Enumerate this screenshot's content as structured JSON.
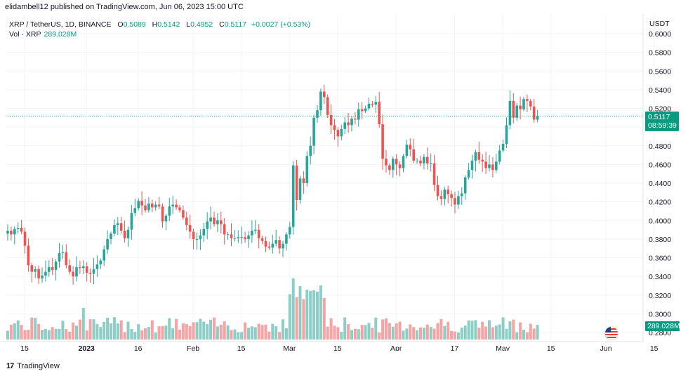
{
  "header": {
    "publish_line": "elidambell12 published on TradingView.com, Jun 06, 2023 15:00 UTC"
  },
  "legend": {
    "symbol": "XRP / TetherUS, 1D, BINANCE",
    "open_label": "O",
    "open": "0.5089",
    "high_label": "H",
    "high": "0.5142",
    "low_label": "L",
    "low": "0.4952",
    "close_label": "C",
    "close": "0.5117",
    "change": "+0.0027 (+0.53%)",
    "vol_label": "Vol · XRP",
    "vol_value": "289.028M"
  },
  "price_axis": {
    "currency": "USDT",
    "current_price": "0.5117",
    "countdown": "08:59:39",
    "current_volume": "289.028M",
    "colors": {
      "up": "#26a69a",
      "down": "#ef5350",
      "vol_up": "#8ccdc5",
      "vol_down": "#f5a3a3",
      "badge": "#089981"
    }
  },
  "footer": {
    "brand": "TradingView",
    "logo_glyph": "17"
  },
  "chart_data": {
    "type": "candlestick",
    "y_ticks": [
      "0.6000",
      "0.5800",
      "0.5600",
      "0.5400",
      "0.5200",
      "0.5000",
      "0.4800",
      "0.4600",
      "0.4400",
      "0.4200",
      "0.4000",
      "0.3800",
      "0.3600",
      "0.3400",
      "0.3200",
      "0.3000",
      "0.2800"
    ],
    "x_ticks": [
      "15",
      "2023",
      "16",
      "Feb",
      "15",
      "Mar",
      "15",
      "Apr",
      "17",
      "May",
      "15",
      "Jun",
      "15"
    ],
    "x_tick_days": [
      0,
      18,
      33,
      49,
      63,
      77,
      91,
      108,
      125,
      139,
      153,
      169,
      183
    ],
    "ylim": [
      0.278,
      0.605
    ],
    "last_price": 0.5117,
    "closes": [
      0.389,
      0.385,
      0.391,
      0.392,
      0.388,
      0.373,
      0.352,
      0.345,
      0.348,
      0.338,
      0.341,
      0.345,
      0.35,
      0.347,
      0.356,
      0.365,
      0.366,
      0.352,
      0.345,
      0.34,
      0.35,
      0.349,
      0.351,
      0.344,
      0.343,
      0.348,
      0.353,
      0.357,
      0.369,
      0.38,
      0.386,
      0.395,
      0.397,
      0.389,
      0.381,
      0.39,
      0.408,
      0.413,
      0.421,
      0.416,
      0.411,
      0.418,
      0.414,
      0.417,
      0.415,
      0.399,
      0.405,
      0.415,
      0.417,
      0.414,
      0.411,
      0.403,
      0.395,
      0.388,
      0.38,
      0.38,
      0.384,
      0.391,
      0.399,
      0.403,
      0.396,
      0.4,
      0.396,
      0.385,
      0.385,
      0.381,
      0.381,
      0.382,
      0.382,
      0.38,
      0.384,
      0.389,
      0.39,
      0.381,
      0.378,
      0.372,
      0.371,
      0.375,
      0.379,
      0.37,
      0.375,
      0.385,
      0.393,
      0.459,
      0.422,
      0.445,
      0.44,
      0.469,
      0.48,
      0.51,
      0.518,
      0.538,
      0.532,
      0.513,
      0.502,
      0.497,
      0.49,
      0.498,
      0.505,
      0.502,
      0.509,
      0.508,
      0.519,
      0.517,
      0.52,
      0.525,
      0.524,
      0.527,
      0.503,
      0.466,
      0.459,
      0.454,
      0.466,
      0.46,
      0.456,
      0.469,
      0.481,
      0.476,
      0.464,
      0.464,
      0.461,
      0.468,
      0.461,
      0.461,
      0.438,
      0.426,
      0.423,
      0.433,
      0.428,
      0.424,
      0.417,
      0.426,
      0.429,
      0.446,
      0.454,
      0.464,
      0.473,
      0.465,
      0.463,
      0.456,
      0.46,
      0.454,
      0.463,
      0.475,
      0.482,
      0.502,
      0.528,
      0.51,
      0.523,
      0.519,
      0.53,
      0.528,
      0.522,
      0.508,
      0.5117
    ],
    "volume_candles": "same colors as price candles"
  }
}
